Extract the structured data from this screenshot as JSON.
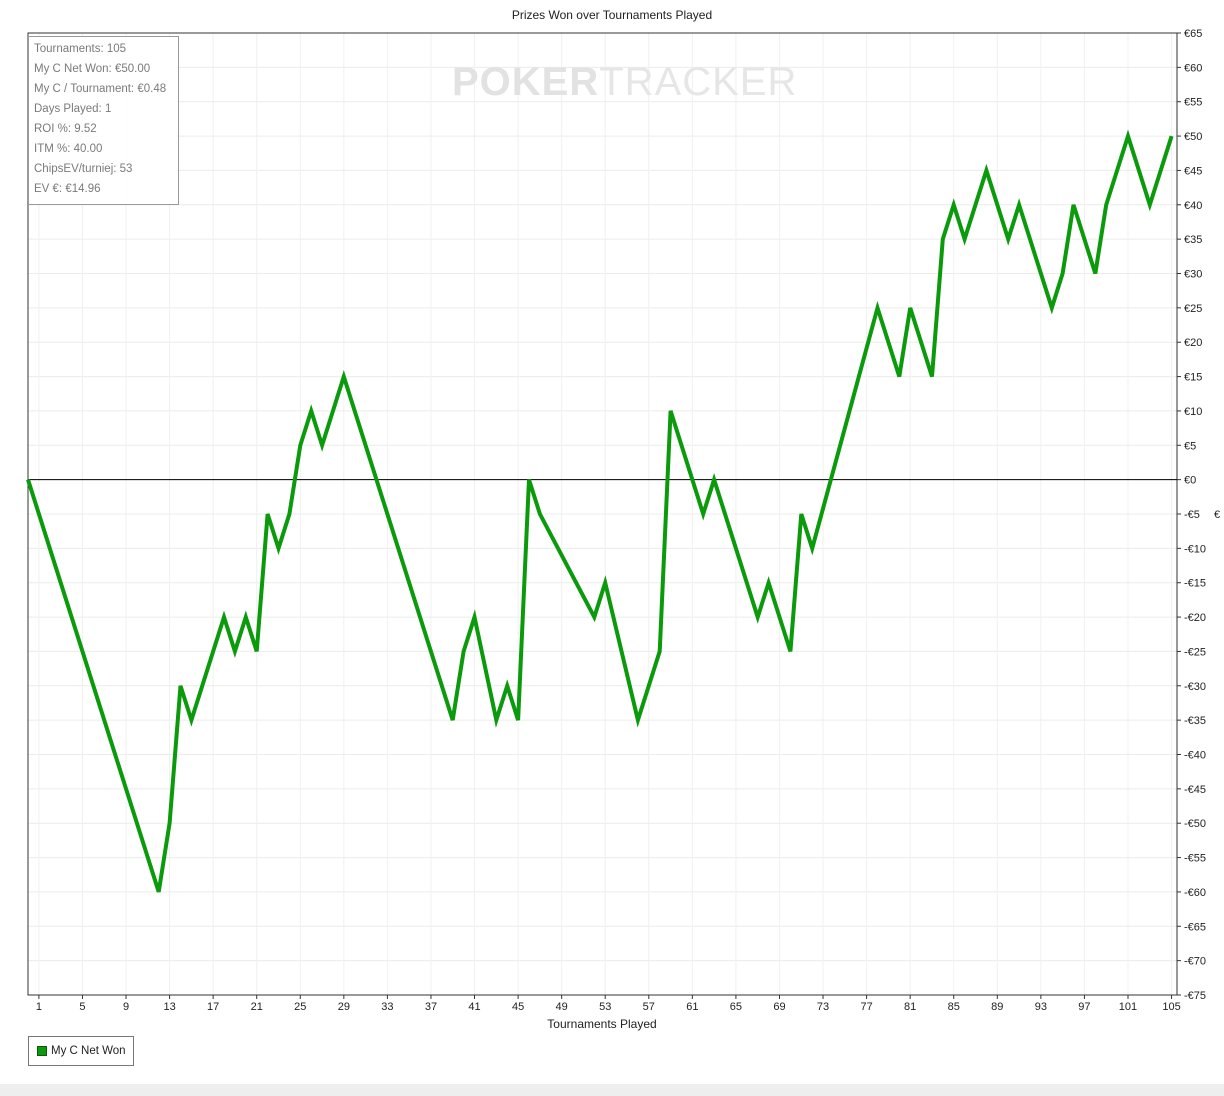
{
  "chart_data": {
    "type": "line",
    "title": "Prizes Won over Tournaments Played",
    "xlabel": "Tournaments Played",
    "ylabel": "€",
    "xlim": [
      0,
      105.5
    ],
    "ylim": [
      -75,
      65
    ],
    "grid": true,
    "legend_position": "bottom-left",
    "x_ticks": [
      1,
      5,
      9,
      13,
      17,
      21,
      25,
      29,
      33,
      37,
      41,
      45,
      49,
      53,
      57,
      61,
      65,
      69,
      73,
      77,
      81,
      85,
      89,
      93,
      97,
      101,
      105
    ],
    "y_ticks": [
      65,
      60,
      55,
      50,
      45,
      40,
      35,
      30,
      25,
      20,
      15,
      10,
      5,
      0,
      -5,
      -10,
      -15,
      -20,
      -25,
      -30,
      -35,
      -40,
      -45,
      -50,
      -55,
      -60,
      -65,
      -70,
      -75
    ],
    "y_tick_labels": [
      "€65",
      "€60",
      "€55",
      "€50",
      "€45",
      "€40",
      "€35",
      "€30",
      "€25",
      "€20",
      "€15",
      "€10",
      "€5",
      "€0",
      "-€5",
      "-€10",
      "-€15",
      "-€20",
      "-€25",
      "-€30",
      "-€35",
      "-€40",
      "-€45",
      "-€50",
      "-€55",
      "-€60",
      "-€65",
      "-€70",
      "-€75"
    ],
    "series": [
      {
        "name": "My C Net Won",
        "color": "#0b9a0b",
        "x": [
          0,
          12,
          13,
          14,
          15,
          18,
          19,
          20,
          21,
          22,
          23,
          24,
          25,
          26,
          27,
          29,
          39,
          40,
          41,
          43,
          44,
          45,
          46,
          47,
          52,
          53,
          56,
          58,
          59,
          62,
          63,
          67,
          68,
          70,
          71,
          72,
          78,
          80,
          81,
          82,
          83,
          84,
          85,
          86,
          88,
          90,
          91,
          94,
          95,
          96,
          98,
          99,
          101,
          103,
          105
        ],
        "values": [
          0,
          -60,
          -50,
          -30,
          -35,
          -20,
          -25,
          -20,
          -25,
          -5,
          -10,
          -5,
          5,
          10,
          5,
          15,
          -35,
          -25,
          -20,
          -35,
          -30,
          -35,
          0,
          -5,
          -20,
          -15,
          -35,
          -25,
          10,
          -5,
          0,
          -20,
          -15,
          -25,
          -5,
          -10,
          25,
          15,
          25,
          20,
          15,
          35,
          40,
          35,
          45,
          35,
          40,
          25,
          30,
          40,
          30,
          40,
          50,
          40,
          50
        ]
      }
    ]
  },
  "stats": [
    "Tournaments: 105",
    "My C Net Won: €50.00",
    "My C / Tournament: €0.48",
    "Days Played: 1",
    "ROI %: 9.52",
    "ITM %: 40.00",
    "ChipsEV/turniej: 53",
    "EV €: €14.96"
  ],
  "watermark": {
    "bold": "POKER",
    "light": "TRACKER"
  },
  "legend": {
    "label": "My C Net Won"
  }
}
